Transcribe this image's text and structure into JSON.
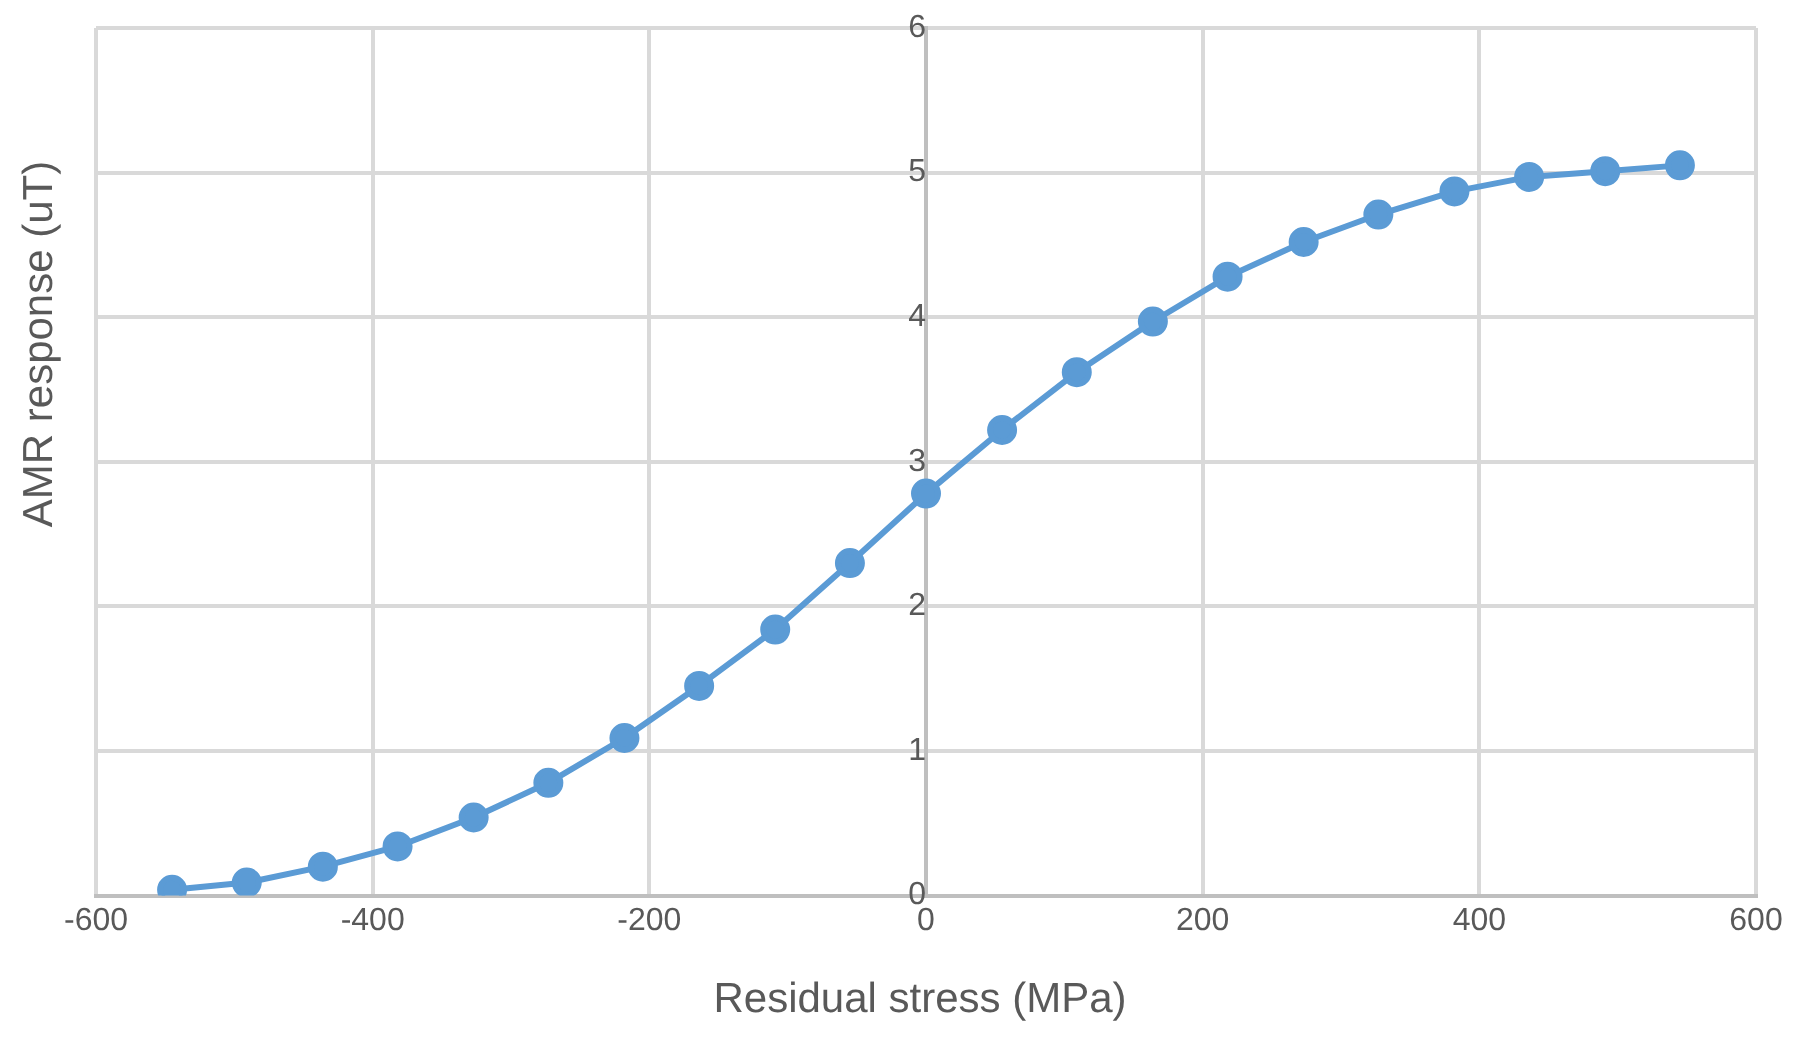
{
  "chart_data": {
    "type": "line",
    "xlabel": "Residual stress (MPa)",
    "ylabel": "AMR response (uT)",
    "x": [
      -545,
      -491,
      -436,
      -382,
      -327,
      -273,
      -218,
      -164,
      -109,
      -55,
      0,
      55,
      109,
      164,
      218,
      273,
      327,
      382,
      436,
      491,
      545
    ],
    "series": [
      {
        "color": "#5b9bd5",
        "values": [
          0.04,
          0.09,
          0.2,
          0.34,
          0.54,
          0.78,
          1.09,
          1.45,
          1.84,
          2.3,
          2.78,
          3.22,
          3.62,
          3.97,
          4.28,
          4.52,
          4.71,
          4.87,
          4.97,
          5.01,
          5.05
        ]
      }
    ],
    "xlim": [
      -600,
      600
    ],
    "xticks": [
      -600,
      -400,
      -200,
      0,
      200,
      400,
      600
    ],
    "ylim": [
      0,
      6
    ],
    "yticks": [
      0,
      1,
      2,
      3,
      4,
      5,
      6
    ],
    "grid": true,
    "legend": false,
    "marker": "circle",
    "line_style": "solid"
  }
}
